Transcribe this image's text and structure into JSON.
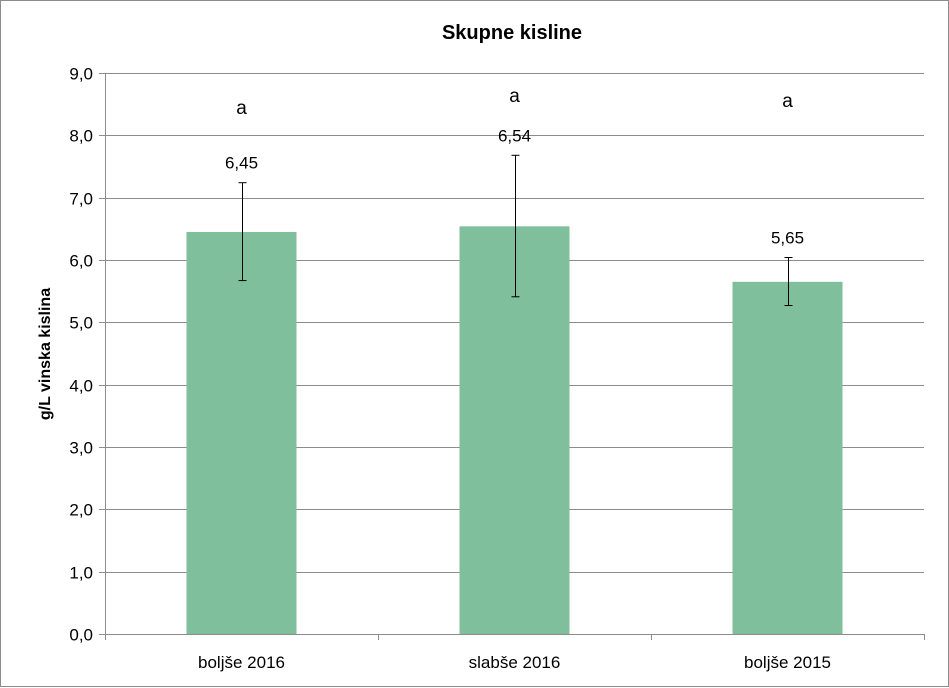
{
  "chart_data": {
    "type": "bar",
    "title": "Skupne kisline",
    "xlabel": "",
    "ylabel": "g/L vinska kislina",
    "ylim": [
      0,
      9
    ],
    "ytick_step": 1,
    "ytick_labels": [
      "0,0",
      "1,0",
      "2,0",
      "3,0",
      "4,0",
      "5,0",
      "6,0",
      "7,0",
      "8,0",
      "9,0"
    ],
    "categories": [
      "boljše 2016",
      "slabše 2016",
      "boljše 2015"
    ],
    "values": [
      6.45,
      6.54,
      5.65
    ],
    "value_labels": [
      "6,45",
      "6,54",
      "5,65"
    ],
    "error_low": [
      5.67,
      5.41,
      5.27
    ],
    "error_high": [
      7.24,
      7.68,
      6.04
    ],
    "significance_letters": [
      "a",
      "a",
      "a"
    ],
    "significance_y": [
      8.44,
      8.63,
      8.55
    ],
    "grid": true,
    "legend": "none",
    "bar_color": "#7fbf9b",
    "grid_color": "#8c8c8c"
  }
}
